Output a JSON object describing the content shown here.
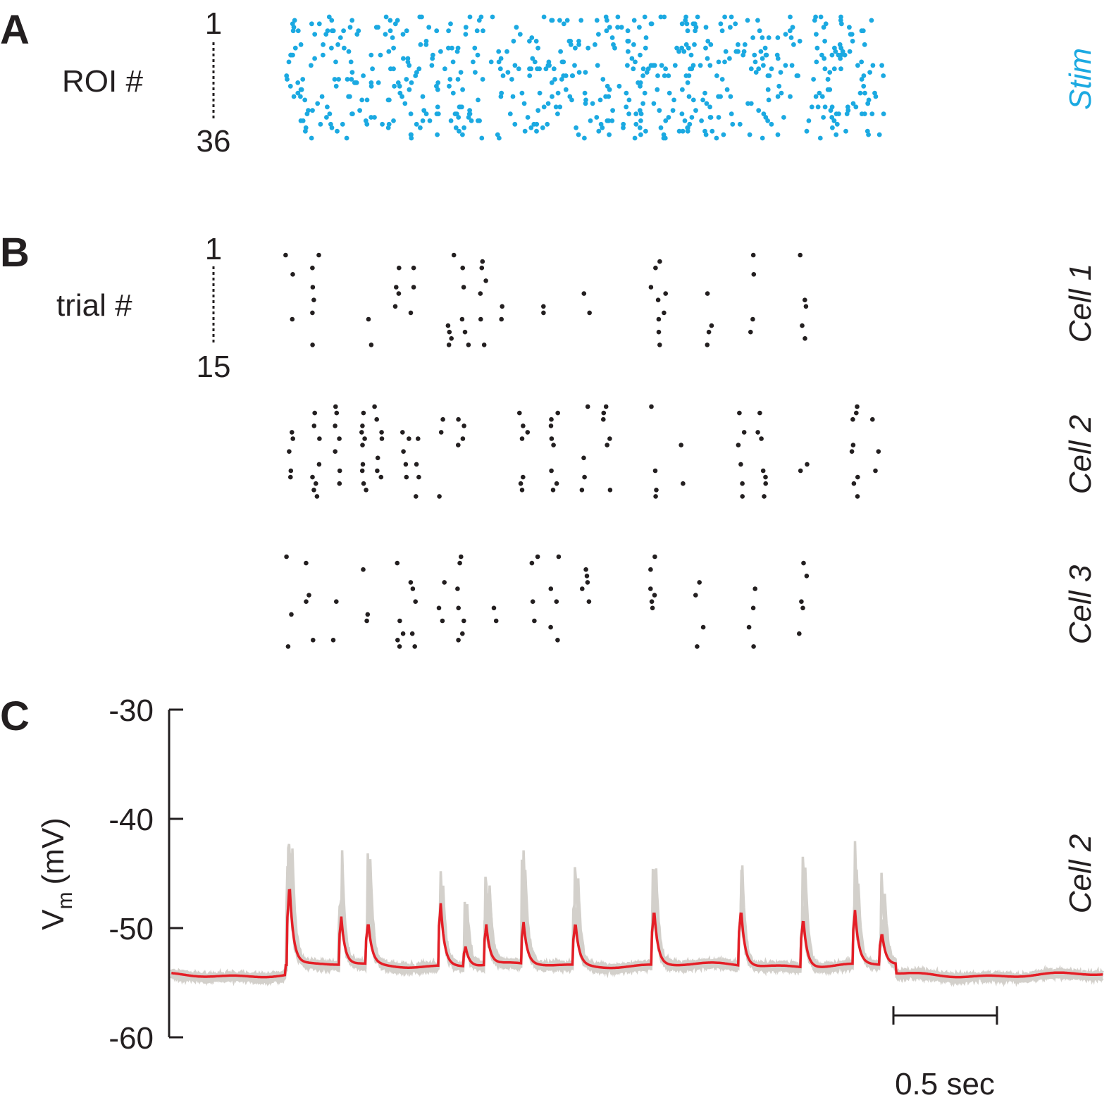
{
  "colors": {
    "stim": "#1ba9e1",
    "spike": "#231f20",
    "mean_trace": "#e41e26",
    "trial_traces": "#d3d0cb",
    "axis": "#231f20"
  },
  "panel_a": {
    "letter": "A",
    "ylabel": "ROI #",
    "tick_top": "1",
    "tick_bottom": "36",
    "side_label": "Stim"
  },
  "panel_b": {
    "letter": "B",
    "ylabel": "trial #",
    "tick_top": "1",
    "tick_bottom": "15",
    "cells": [
      "Cell 1",
      "Cell 2",
      "Cell 3"
    ]
  },
  "panel_c": {
    "letter": "C",
    "ylabel_main": "V",
    "ylabel_sub": "m",
    "ylabel_unit": "(mV)",
    "side_label": "Cell 2",
    "scalebar_label": "0.5 sec"
  },
  "chart_data": [
    {
      "type": "scatter",
      "name": "stimulus raster",
      "y_range": [
        1,
        36
      ],
      "x_range_s": [
        0,
        2.9
      ],
      "n_rois": 36,
      "approx_events": 620
    },
    {
      "type": "scatter",
      "name": "spike rasters",
      "trials": 15,
      "x_range_s": [
        0,
        2.9
      ],
      "cells": [
        {
          "name": "Cell 1",
          "spike_times_s": [
            0.02,
            0.15,
            0.4,
            0.55,
            0.62,
            0.8,
            0.87,
            0.95,
            1.05,
            1.25,
            1.45,
            1.78,
            1.82,
            2.05,
            2.25,
            2.5
          ]
        },
        {
          "name": "Cell 2",
          "spike_times_s": [
            0.02,
            0.15,
            0.25,
            0.37,
            0.45,
            0.58,
            0.65,
            0.75,
            0.85,
            1.15,
            1.3,
            1.45,
            1.55,
            1.78,
            1.9,
            2.2,
            2.3,
            2.5,
            2.75,
            2.85
          ]
        },
        {
          "name": "Cell 3",
          "spike_times_s": [
            0.02,
            0.12,
            0.25,
            0.38,
            0.55,
            0.62,
            0.75,
            0.85,
            1.0,
            1.2,
            1.3,
            1.45,
            1.78,
            2.0,
            2.25,
            2.5
          ]
        }
      ]
    },
    {
      "type": "line",
      "name": "membrane potential",
      "ylabel": "Vm (mV)",
      "ylim": [
        -60,
        -30
      ],
      "yticks": [
        -30,
        -40,
        -50,
        -60
      ],
      "x_range_s": [
        -0.55,
        3.95
      ],
      "scalebar_s": 0.5,
      "baseline_mV": -54.3,
      "series": [
        {
          "name": "mean",
          "peaks": [
            {
              "t": 0.02,
              "v": -45.8
            },
            {
              "t": 0.27,
              "v": -49.0
            },
            {
              "t": 0.4,
              "v": -49.5
            },
            {
              "t": 0.75,
              "v": -47.7
            },
            {
              "t": 0.87,
              "v": -51.6
            },
            {
              "t": 0.97,
              "v": -49.7
            },
            {
              "t": 1.15,
              "v": -49.6
            },
            {
              "t": 1.4,
              "v": -49.4
            },
            {
              "t": 1.78,
              "v": -48.2
            },
            {
              "t": 2.2,
              "v": -48.1
            },
            {
              "t": 2.5,
              "v": -48.8
            },
            {
              "t": 2.75,
              "v": -48.5
            },
            {
              "t": 2.88,
              "v": -50.4
            }
          ]
        }
      ]
    }
  ]
}
